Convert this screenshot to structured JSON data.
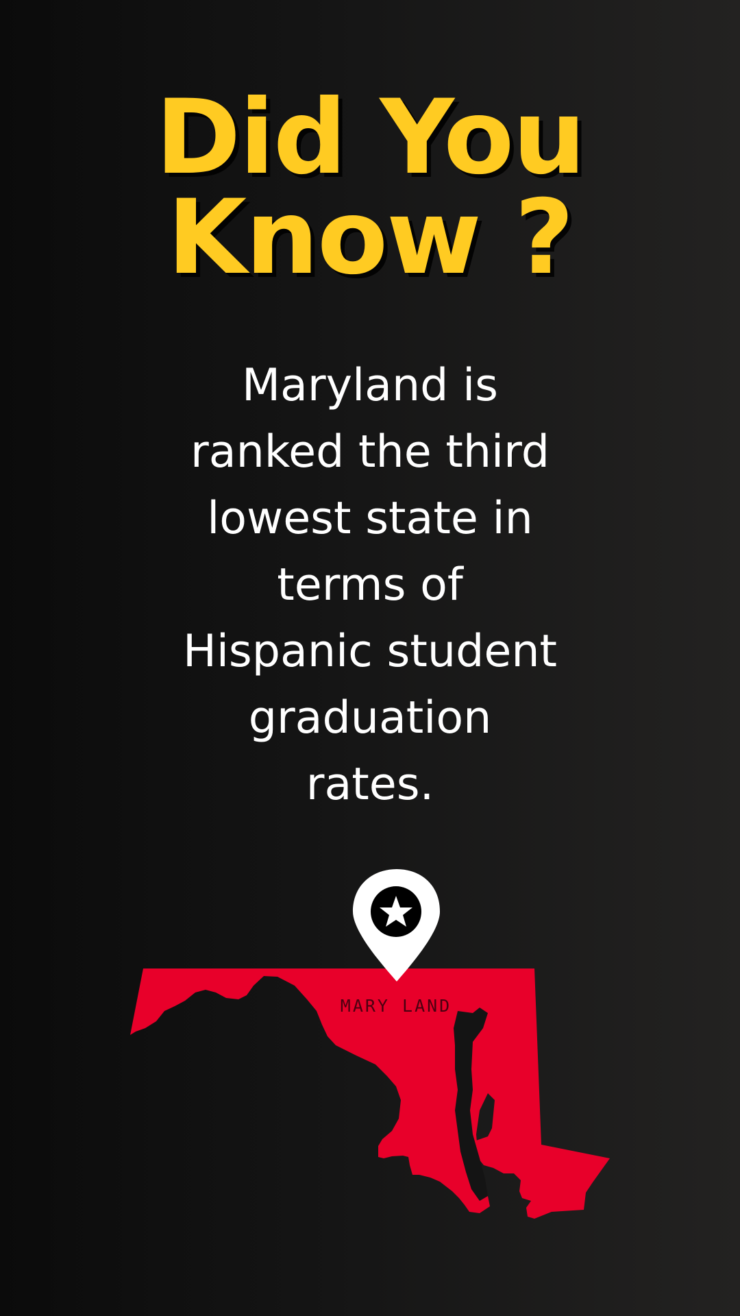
{
  "headline": {
    "line1": "Did You",
    "line2": "Know ?"
  },
  "fact_lines": [
    "Maryland is",
    "ranked the third",
    "lowest state in",
    "terms of",
    "Hispanic student",
    "graduation",
    "rates."
  ],
  "map": {
    "state_label": "MARY LAND",
    "pin_icon": "map-pin-star-icon"
  },
  "colors": {
    "headline": "#FFCB22",
    "body_text": "#FFFFFF",
    "state_fill": "#E8002A",
    "background": "#141414"
  }
}
